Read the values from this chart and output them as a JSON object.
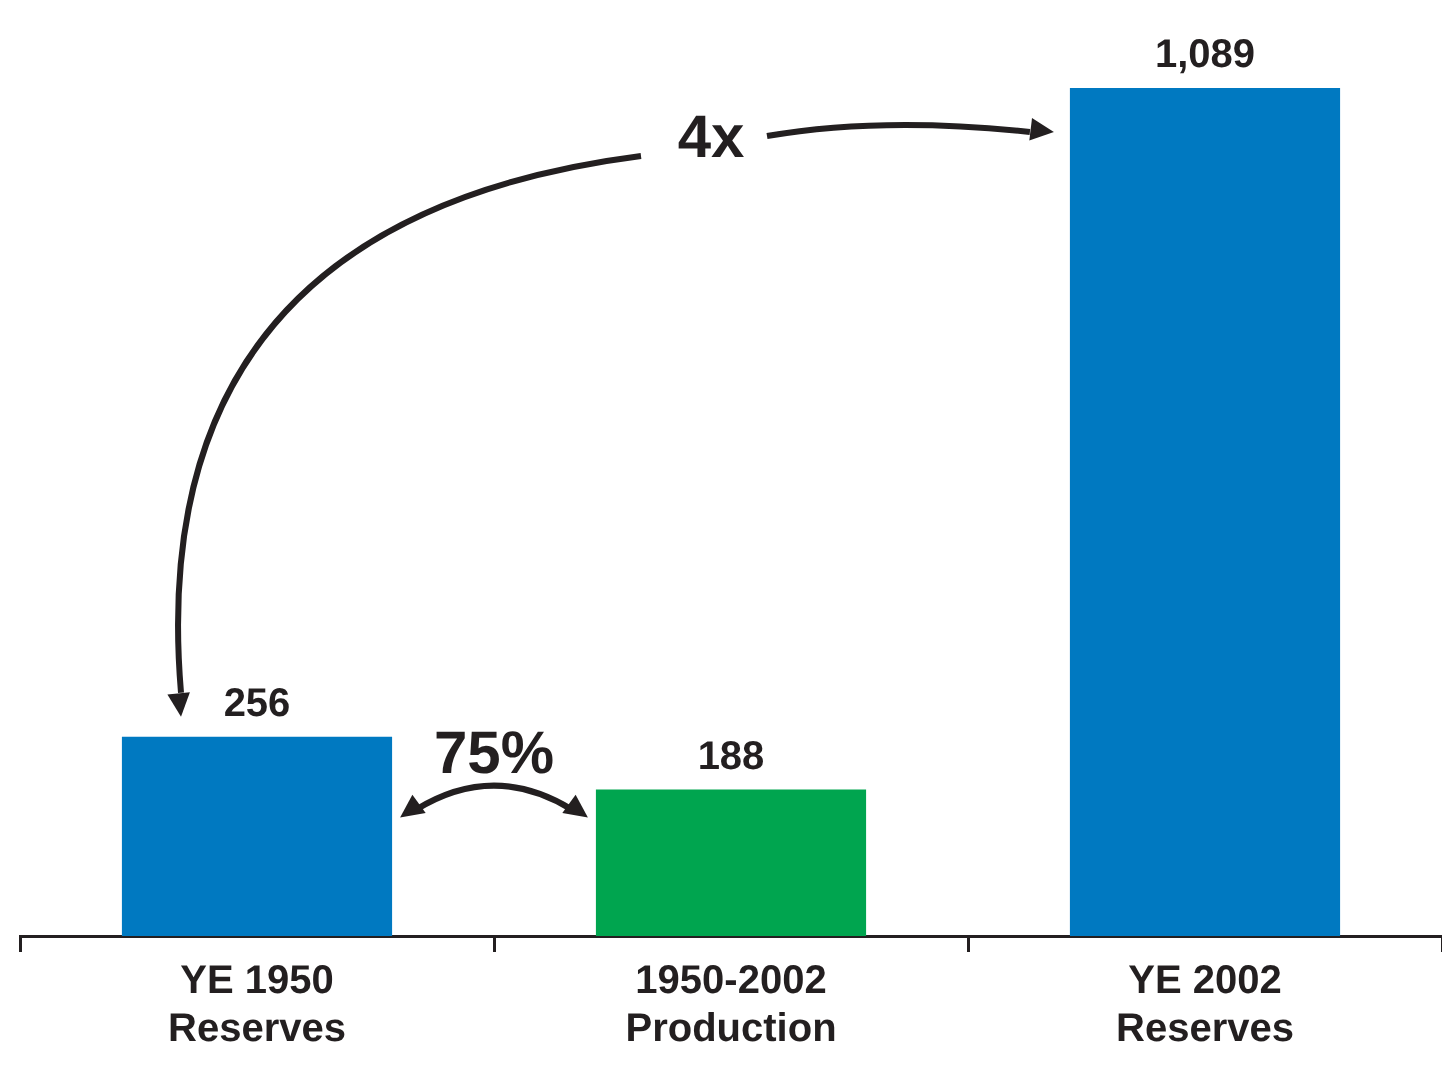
{
  "chart_data": {
    "type": "bar",
    "categories": [
      "YE 1950 Reserves",
      "1950-2002 Production",
      "YE 2002 Reserves"
    ],
    "values": [
      256,
      188,
      1089
    ],
    "colors": [
      "#0079c1",
      "#00a54f",
      "#0079c1"
    ],
    "value_labels": [
      "256",
      "188",
      "1,089"
    ],
    "grid": false,
    "legend": false,
    "annotations": [
      "4x",
      "75%"
    ]
  }
}
